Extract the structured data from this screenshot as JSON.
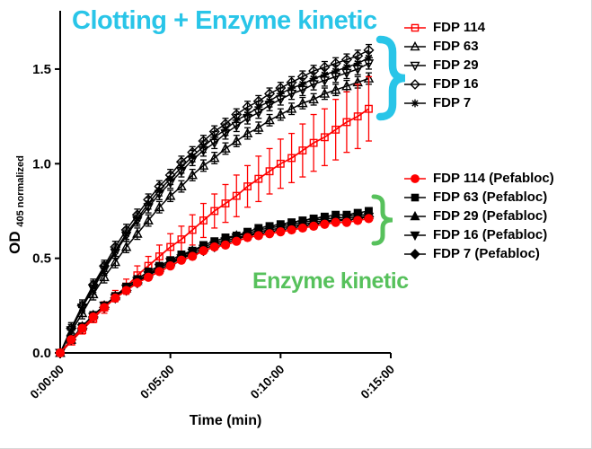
{
  "chart_data": {
    "type": "line",
    "title": "",
    "xlabel": "Time (min)",
    "ylabel_main": "OD",
    "ylabel_sub": "405 normalized",
    "x_axis": {
      "tick_labels": [
        "0:00:00",
        "0:05:00",
        "0:10:00",
        "0:15:00"
      ],
      "tick_minutes": [
        0,
        5,
        10,
        15
      ],
      "range_minutes": [
        0,
        15
      ]
    },
    "y_axis": {
      "tick_labels": [
        "0.0",
        "0.5",
        "1.0",
        "1.5"
      ],
      "tick_values": [
        0.0,
        0.5,
        1.0,
        1.5
      ],
      "range": [
        0,
        1.8
      ],
      "grid": false
    },
    "x_minutes": [
      0,
      0.5,
      1,
      1.5,
      2,
      2.5,
      3,
      3.5,
      4,
      4.5,
      5,
      5.5,
      6,
      6.5,
      7,
      7.5,
      8,
      8.5,
      9,
      9.5,
      10,
      10.5,
      11,
      11.5,
      12,
      12.5,
      13,
      13.5,
      14
    ],
    "series": [
      {
        "name": "FDP 114",
        "marker": "square",
        "filled": false,
        "color": "#ff0000",
        "values": [
          0,
          0.06,
          0.12,
          0.18,
          0.24,
          0.3,
          0.35,
          0.41,
          0.46,
          0.51,
          0.56,
          0.6,
          0.65,
          0.7,
          0.75,
          0.79,
          0.83,
          0.88,
          0.92,
          0.96,
          1.0,
          1.03,
          1.07,
          1.11,
          1.14,
          1.18,
          1.22,
          1.25,
          1.29
        ],
        "errors": [
          0,
          0.01,
          0.02,
          0.02,
          0.03,
          0.03,
          0.04,
          0.05,
          0.05,
          0.06,
          0.07,
          0.07,
          0.08,
          0.09,
          0.09,
          0.1,
          0.11,
          0.11,
          0.12,
          0.12,
          0.13,
          0.13,
          0.14,
          0.15,
          0.15,
          0.16,
          0.16,
          0.17,
          0.17
        ]
      },
      {
        "name": "FDP 63",
        "marker": "triangle",
        "filled": false,
        "color": "#000000",
        "values": [
          0,
          0.11,
          0.21,
          0.31,
          0.4,
          0.48,
          0.56,
          0.63,
          0.7,
          0.77,
          0.83,
          0.88,
          0.94,
          0.99,
          1.03,
          1.08,
          1.12,
          1.16,
          1.19,
          1.23,
          1.26,
          1.29,
          1.32,
          1.34,
          1.37,
          1.39,
          1.41,
          1.43,
          1.45
        ],
        "error": 0.03
      },
      {
        "name": "FDP 29",
        "marker": "triangle-down",
        "filled": false,
        "color": "#000000",
        "values": [
          0,
          0.12,
          0.24,
          0.34,
          0.44,
          0.53,
          0.62,
          0.7,
          0.77,
          0.84,
          0.9,
          0.96,
          1.02,
          1.07,
          1.11,
          1.16,
          1.2,
          1.24,
          1.27,
          1.31,
          1.34,
          1.37,
          1.39,
          1.42,
          1.44,
          1.46,
          1.48,
          1.5,
          1.53
        ],
        "error": 0.03
      },
      {
        "name": "FDP 16",
        "marker": "diamond",
        "filled": false,
        "color": "#000000",
        "values": [
          0,
          0.13,
          0.25,
          0.36,
          0.46,
          0.56,
          0.65,
          0.73,
          0.81,
          0.88,
          0.94,
          1.01,
          1.06,
          1.12,
          1.17,
          1.21,
          1.26,
          1.3,
          1.33,
          1.37,
          1.4,
          1.43,
          1.46,
          1.49,
          1.51,
          1.53,
          1.55,
          1.57,
          1.6
        ],
        "error": 0.03
      },
      {
        "name": "FDP 7",
        "marker": "asterisk",
        "filled": false,
        "color": "#000000",
        "values": [
          0,
          0.12,
          0.24,
          0.35,
          0.45,
          0.54,
          0.63,
          0.71,
          0.79,
          0.86,
          0.92,
          0.98,
          1.04,
          1.09,
          1.14,
          1.18,
          1.23,
          1.26,
          1.3,
          1.33,
          1.37,
          1.4,
          1.42,
          1.45,
          1.47,
          1.49,
          1.51,
          1.53,
          1.56
        ],
        "error": 0.03
      },
      {
        "name": "FDP 114 (Pefabloc)",
        "marker": "circle",
        "filled": true,
        "color": "#ff0000",
        "values": [
          0,
          0.07,
          0.13,
          0.19,
          0.24,
          0.29,
          0.33,
          0.37,
          0.4,
          0.43,
          0.46,
          0.49,
          0.51,
          0.54,
          0.56,
          0.57,
          0.59,
          0.61,
          0.62,
          0.63,
          0.64,
          0.65,
          0.66,
          0.67,
          0.68,
          0.69,
          0.69,
          0.7,
          0.71
        ],
        "error": 0.015
      },
      {
        "name": "FDP 63 (Pefabloc)",
        "marker": "square",
        "filled": true,
        "color": "#000000",
        "values": [
          0,
          0.07,
          0.14,
          0.2,
          0.25,
          0.3,
          0.35,
          0.39,
          0.43,
          0.46,
          0.49,
          0.52,
          0.54,
          0.57,
          0.59,
          0.61,
          0.62,
          0.64,
          0.66,
          0.67,
          0.68,
          0.69,
          0.7,
          0.71,
          0.72,
          0.73,
          0.73,
          0.74,
          0.75
        ],
        "error": 0.015
      },
      {
        "name": "FDP 29 (Pefabloc)",
        "marker": "triangle",
        "filled": true,
        "color": "#000000",
        "values": [
          0,
          0.07,
          0.14,
          0.2,
          0.25,
          0.3,
          0.34,
          0.38,
          0.42,
          0.45,
          0.48,
          0.51,
          0.54,
          0.56,
          0.58,
          0.6,
          0.62,
          0.63,
          0.65,
          0.66,
          0.67,
          0.68,
          0.69,
          0.7,
          0.71,
          0.71,
          0.72,
          0.73,
          0.73
        ],
        "error": 0.015
      },
      {
        "name": "FDP 16 (Pefabloc)",
        "marker": "triangle-down",
        "filled": true,
        "color": "#000000",
        "values": [
          0,
          0.07,
          0.13,
          0.19,
          0.25,
          0.29,
          0.34,
          0.38,
          0.41,
          0.45,
          0.48,
          0.5,
          0.53,
          0.55,
          0.57,
          0.59,
          0.61,
          0.62,
          0.64,
          0.65,
          0.66,
          0.67,
          0.68,
          0.69,
          0.7,
          0.7,
          0.71,
          0.72,
          0.72
        ],
        "error": 0.015
      },
      {
        "name": "FDP 7 (Pefabloc)",
        "marker": "diamond",
        "filled": true,
        "color": "#000000",
        "values": [
          0,
          0.07,
          0.13,
          0.19,
          0.24,
          0.29,
          0.33,
          0.37,
          0.41,
          0.44,
          0.47,
          0.5,
          0.52,
          0.54,
          0.56,
          0.58,
          0.6,
          0.62,
          0.63,
          0.64,
          0.65,
          0.66,
          0.67,
          0.68,
          0.69,
          0.7,
          0.7,
          0.71,
          0.72
        ],
        "error": 0.015
      }
    ],
    "legend": {
      "position": "right",
      "top_group_series": [
        0,
        1,
        2,
        3,
        4
      ],
      "bottom_group_series": [
        5,
        6,
        7,
        8,
        9
      ]
    },
    "annotations": [
      {
        "id": "clotting",
        "text": "Clotting + Enzyme kinetic",
        "color": "#29c5e8"
      },
      {
        "id": "enzyme",
        "text": "Enzyme kinetic",
        "color": "#57c15c"
      }
    ],
    "braces": [
      {
        "id": "top-group-brace",
        "color": "#29c5e8"
      },
      {
        "id": "bottom-group-brace",
        "color": "#57c15c"
      }
    ]
  }
}
